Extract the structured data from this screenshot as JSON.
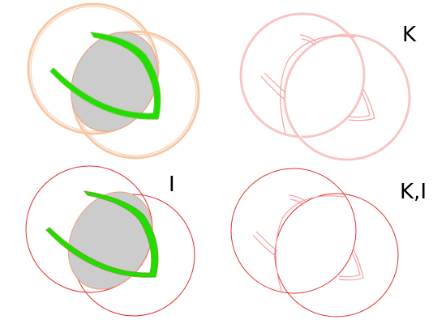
{
  "panels": [
    {
      "id": "original",
      "label": ""
    },
    {
      "id": "k",
      "label": "K"
    },
    {
      "id": "i",
      "label": "I"
    },
    {
      "id": "ki",
      "label": "K,I"
    }
  ],
  "colors": {
    "background": "#ffffff",
    "orange_outline": "#f6c8a6",
    "orange_stroke": "#e8a07a",
    "red_stroke": "#e03030",
    "pink_stroke": "#f4a0a0",
    "lens_fill": "#cccccc",
    "green": "#22dd00",
    "label": "#000000"
  }
}
